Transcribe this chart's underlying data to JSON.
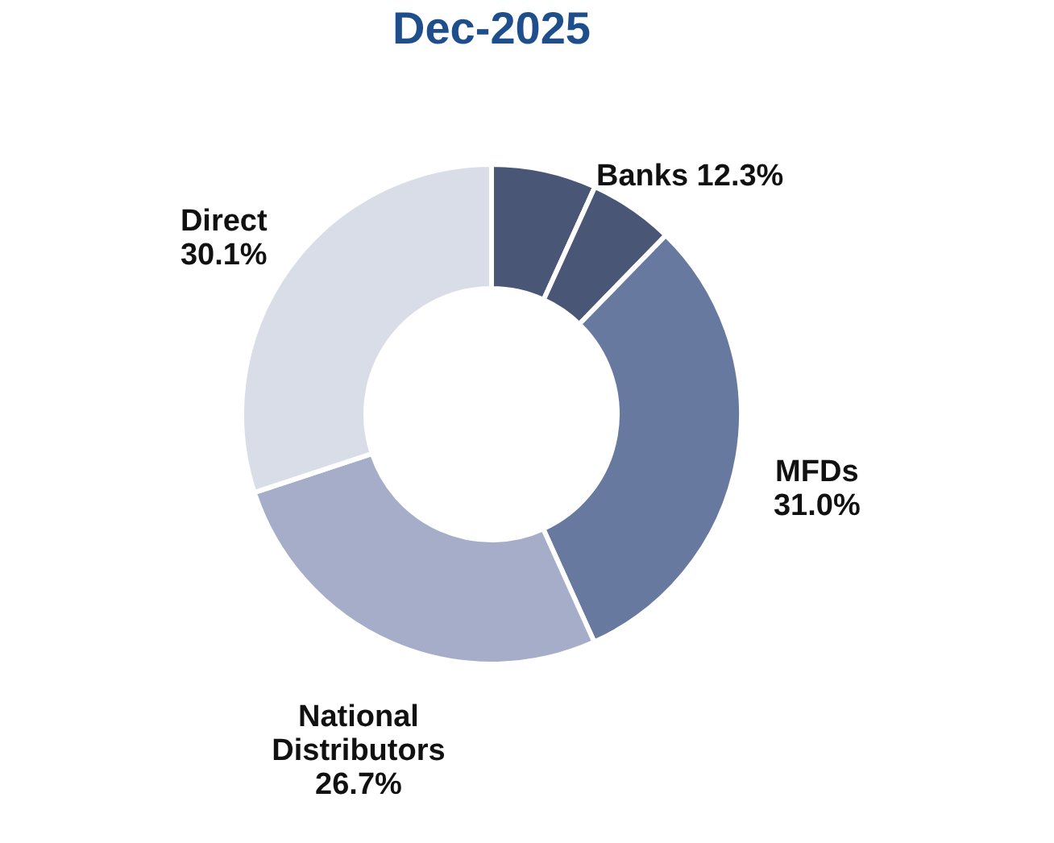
{
  "chart_data": {
    "type": "donut",
    "title": "Dec-2025",
    "categories": [
      null,
      null,
      "MFDs",
      "National Distributors",
      "Direct"
    ],
    "annotations": [
      "Banks 12.3%"
    ],
    "values": [
      6.8,
      5.5,
      31.0,
      26.7,
      30.1
    ],
    "value_labels": [
      null,
      null,
      "31.0%",
      "26.7%",
      "30.1%"
    ],
    "colors": [
      "#4a5676",
      "#4a5676",
      "#67799f",
      "#a5adc8",
      "#d9dde8"
    ],
    "legend": false
  }
}
